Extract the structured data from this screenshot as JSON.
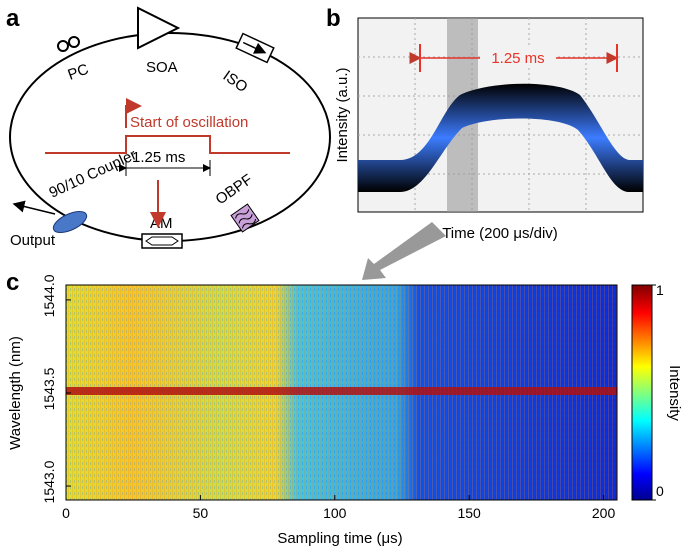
{
  "panels": {
    "a": {
      "label": "a",
      "pc": "PC",
      "soa": "SOA",
      "iso": "ISO",
      "obpf": "OBPF",
      "am": "AM",
      "coupler": "90/10 Coupler",
      "output": "Output",
      "start": "Start of oscillation",
      "width": "1.25 ms"
    },
    "b": {
      "label": "b",
      "annotation": "1.25 ms",
      "xlabel": "Time (200 μs/div)",
      "ylabel": "Intensity (a.u.)"
    },
    "c": {
      "label": "c",
      "xlabel": "Sampling time (μs)",
      "ylabel": "Wavelength (nm)",
      "xlim": [
        0,
        205
      ],
      "xticks": [
        0,
        50,
        100,
        150,
        200
      ],
      "ylim": [
        1542.925,
        1544.08
      ],
      "yticks": [
        {
          "value": 1543.0,
          "label": "1543.0"
        },
        1543.5,
        {
          "value": 1544.0,
          "label": "1544.0"
        }
      ],
      "colorbar": {
        "label": "Intensity",
        "lim": [
          0,
          1
        ],
        "ticks": [
          0,
          1
        ]
      }
    }
  }
}
